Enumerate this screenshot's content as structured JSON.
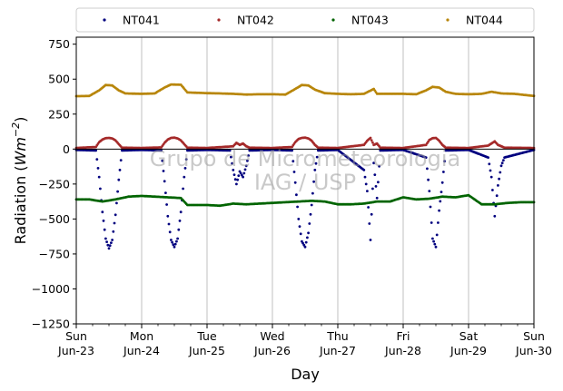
{
  "chart_data": {
    "type": "scatter",
    "title": "",
    "xlabel": "Day",
    "ylabel": "Radiation (Wm⁻²)",
    "ylabel_base": "Radiation (",
    "ylabel_unit": "Wm",
    "ylabel_exp": "−2",
    "ylabel_close": ")",
    "ylim": [
      -1250,
      800
    ],
    "xlim": [
      0,
      7
    ],
    "yticks": [
      {
        "value": 750,
        "label": "750"
      },
      {
        "value": 500,
        "label": "500"
      },
      {
        "value": 250,
        "label": "250"
      },
      {
        "value": 0,
        "label": "0"
      },
      {
        "value": -250,
        "label": "−250"
      },
      {
        "value": -500,
        "label": "−500"
      },
      {
        "value": -750,
        "label": "−750"
      },
      {
        "value": -1000,
        "label": "−1000"
      },
      {
        "value": -1250,
        "label": "−1250"
      }
    ],
    "xticks": [
      {
        "value": 0,
        "line1": "Sun",
        "line2": "Jun-23"
      },
      {
        "value": 1,
        "line1": "Mon",
        "line2": "Jun-24"
      },
      {
        "value": 2,
        "line1": "Tue",
        "line2": "Jun-25"
      },
      {
        "value": 3,
        "line1": "Wed",
        "line2": "Jun-26"
      },
      {
        "value": 4,
        "line1": "Thu",
        "line2": "Jun-27"
      },
      {
        "value": 5,
        "line1": "Fri",
        "line2": "Jun-28"
      },
      {
        "value": 6,
        "line1": "Sat",
        "line2": "Jun-29"
      },
      {
        "value": 7,
        "line1": "Sun",
        "line2": "Jun-30"
      }
    ],
    "grid": "x-major",
    "zero_line": 0,
    "legend_position": "top",
    "watermark_line1": "Grupo de Micrometeorologia",
    "watermark_line2": "IAG / USP",
    "series": [
      {
        "name": "NT041",
        "color": "#00007f",
        "points": [
          [
            0.0,
            -6
          ],
          [
            0.3,
            -10
          ],
          [
            0.35,
            -200
          ],
          [
            0.4,
            -450
          ],
          [
            0.45,
            -640
          ],
          [
            0.5,
            -710
          ],
          [
            0.55,
            -650
          ],
          [
            0.6,
            -470
          ],
          [
            0.65,
            -220
          ],
          [
            0.7,
            -10
          ],
          [
            1.0,
            -6
          ],
          [
            1.3,
            -10
          ],
          [
            1.35,
            -230
          ],
          [
            1.4,
            -480
          ],
          [
            1.45,
            -650
          ],
          [
            1.5,
            -700
          ],
          [
            1.55,
            -640
          ],
          [
            1.6,
            -450
          ],
          [
            1.65,
            -200
          ],
          [
            1.7,
            -10
          ],
          [
            2.0,
            -6
          ],
          [
            2.35,
            -10
          ],
          [
            2.4,
            -150
          ],
          [
            2.45,
            -250
          ],
          [
            2.5,
            -160
          ],
          [
            2.55,
            -200
          ],
          [
            2.6,
            -120
          ],
          [
            2.65,
            -10
          ],
          [
            3.0,
            -6
          ],
          [
            3.3,
            -10
          ],
          [
            3.35,
            -240
          ],
          [
            3.4,
            -500
          ],
          [
            3.45,
            -660
          ],
          [
            3.5,
            -700
          ],
          [
            3.55,
            -600
          ],
          [
            3.6,
            -400
          ],
          [
            3.65,
            -150
          ],
          [
            3.7,
            -10
          ],
          [
            4.0,
            -6
          ],
          [
            4.4,
            -150
          ],
          [
            4.45,
            -300
          ],
          [
            4.5,
            -650
          ],
          [
            4.55,
            -100
          ],
          [
            4.6,
            -350
          ],
          [
            4.65,
            -10
          ],
          [
            5.0,
            -6
          ],
          [
            5.35,
            -60
          ],
          [
            5.4,
            -300
          ],
          [
            5.45,
            -640
          ],
          [
            5.5,
            -700
          ],
          [
            5.55,
            -440
          ],
          [
            5.6,
            -240
          ],
          [
            5.65,
            -10
          ],
          [
            6.0,
            -6
          ],
          [
            6.3,
            -60
          ],
          [
            6.35,
            -200
          ],
          [
            6.4,
            -480
          ],
          [
            6.45,
            -260
          ],
          [
            6.5,
            -120
          ],
          [
            6.55,
            -60
          ],
          [
            7.0,
            -6
          ]
        ]
      },
      {
        "name": "NT042",
        "color": "#a52a2a",
        "points": [
          [
            0.0,
            8
          ],
          [
            0.3,
            15
          ],
          [
            0.35,
            50
          ],
          [
            0.4,
            68
          ],
          [
            0.45,
            78
          ],
          [
            0.5,
            80
          ],
          [
            0.55,
            76
          ],
          [
            0.6,
            62
          ],
          [
            0.65,
            35
          ],
          [
            0.7,
            10
          ],
          [
            1.0,
            8
          ],
          [
            1.3,
            12
          ],
          [
            1.35,
            45
          ],
          [
            1.4,
            68
          ],
          [
            1.45,
            80
          ],
          [
            1.5,
            82
          ],
          [
            1.55,
            76
          ],
          [
            1.6,
            62
          ],
          [
            1.65,
            36
          ],
          [
            1.7,
            10
          ],
          [
            2.0,
            8
          ],
          [
            2.4,
            20
          ],
          [
            2.45,
            45
          ],
          [
            2.5,
            30
          ],
          [
            2.55,
            40
          ],
          [
            2.6,
            20
          ],
          [
            2.65,
            10
          ],
          [
            3.0,
            8
          ],
          [
            3.3,
            15
          ],
          [
            3.35,
            50
          ],
          [
            3.4,
            72
          ],
          [
            3.45,
            80
          ],
          [
            3.5,
            82
          ],
          [
            3.55,
            76
          ],
          [
            3.6,
            60
          ],
          [
            3.65,
            30
          ],
          [
            3.7,
            10
          ],
          [
            4.0,
            8
          ],
          [
            4.4,
            30
          ],
          [
            4.45,
            60
          ],
          [
            4.5,
            80
          ],
          [
            4.55,
            30
          ],
          [
            4.6,
            40
          ],
          [
            4.65,
            10
          ],
          [
            5.0,
            8
          ],
          [
            5.35,
            30
          ],
          [
            5.4,
            65
          ],
          [
            5.45,
            78
          ],
          [
            5.5,
            80
          ],
          [
            5.55,
            60
          ],
          [
            5.6,
            30
          ],
          [
            5.65,
            10
          ],
          [
            6.0,
            8
          ],
          [
            6.3,
            25
          ],
          [
            6.35,
            40
          ],
          [
            6.4,
            55
          ],
          [
            6.45,
            30
          ],
          [
            6.5,
            20
          ],
          [
            6.55,
            10
          ],
          [
            7.0,
            8
          ]
        ]
      },
      {
        "name": "NT043",
        "color": "#006400",
        "points": [
          [
            0.0,
            -360
          ],
          [
            0.2,
            -360
          ],
          [
            0.4,
            -375
          ],
          [
            0.6,
            -360
          ],
          [
            0.8,
            -340
          ],
          [
            1.0,
            -335
          ],
          [
            1.2,
            -340
          ],
          [
            1.4,
            -345
          ],
          [
            1.6,
            -350
          ],
          [
            1.7,
            -400
          ],
          [
            2.0,
            -400
          ],
          [
            2.2,
            -405
          ],
          [
            2.4,
            -390
          ],
          [
            2.6,
            -395
          ],
          [
            2.8,
            -390
          ],
          [
            3.0,
            -385
          ],
          [
            3.2,
            -380
          ],
          [
            3.4,
            -375
          ],
          [
            3.6,
            -370
          ],
          [
            3.8,
            -375
          ],
          [
            4.0,
            -395
          ],
          [
            4.2,
            -395
          ],
          [
            4.4,
            -390
          ],
          [
            4.6,
            -375
          ],
          [
            4.8,
            -375
          ],
          [
            5.0,
            -345
          ],
          [
            5.2,
            -360
          ],
          [
            5.4,
            -355
          ],
          [
            5.6,
            -340
          ],
          [
            5.8,
            -345
          ],
          [
            6.0,
            -330
          ],
          [
            6.2,
            -395
          ],
          [
            6.4,
            -395
          ],
          [
            6.6,
            -385
          ],
          [
            6.8,
            -380
          ],
          [
            7.0,
            -380
          ]
        ]
      },
      {
        "name": "NT044",
        "color": "#b8860b",
        "points": [
          [
            0.0,
            378
          ],
          [
            0.2,
            380
          ],
          [
            0.35,
            420
          ],
          [
            0.45,
            458
          ],
          [
            0.55,
            455
          ],
          [
            0.65,
            420
          ],
          [
            0.75,
            398
          ],
          [
            1.0,
            395
          ],
          [
            1.2,
            398
          ],
          [
            1.35,
            440
          ],
          [
            1.45,
            462
          ],
          [
            1.6,
            460
          ],
          [
            1.7,
            405
          ],
          [
            2.0,
            400
          ],
          [
            2.2,
            398
          ],
          [
            2.4,
            395
          ],
          [
            2.6,
            390
          ],
          [
            2.8,
            392
          ],
          [
            3.0,
            392
          ],
          [
            3.2,
            390
          ],
          [
            3.35,
            430
          ],
          [
            3.45,
            458
          ],
          [
            3.55,
            455
          ],
          [
            3.65,
            425
          ],
          [
            3.8,
            400
          ],
          [
            4.0,
            395
          ],
          [
            4.2,
            392
          ],
          [
            4.4,
            395
          ],
          [
            4.55,
            430
          ],
          [
            4.6,
            395
          ],
          [
            4.8,
            395
          ],
          [
            5.0,
            395
          ],
          [
            5.2,
            392
          ],
          [
            5.35,
            420
          ],
          [
            5.45,
            445
          ],
          [
            5.55,
            440
          ],
          [
            5.65,
            410
          ],
          [
            5.8,
            395
          ],
          [
            6.0,
            392
          ],
          [
            6.2,
            395
          ],
          [
            6.35,
            410
          ],
          [
            6.5,
            398
          ],
          [
            6.7,
            395
          ],
          [
            6.9,
            385
          ],
          [
            7.0,
            380
          ]
        ]
      }
    ]
  }
}
